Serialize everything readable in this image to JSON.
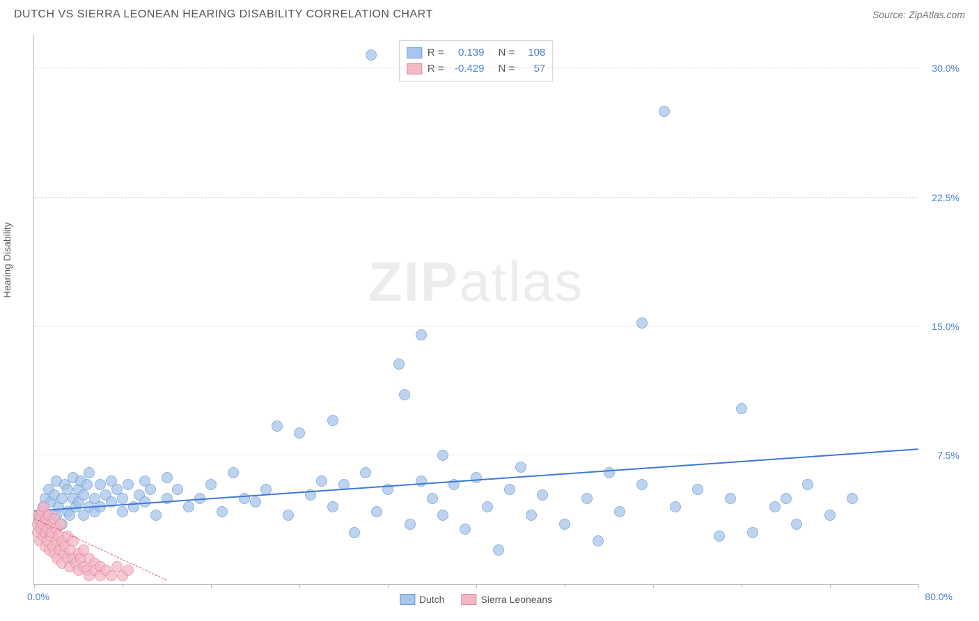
{
  "header": {
    "title": "DUTCH VS SIERRA LEONEAN HEARING DISABILITY CORRELATION CHART",
    "source": "Source: ZipAtlas.com"
  },
  "chart": {
    "type": "scatter",
    "y_axis_title": "Hearing Disability",
    "background_color": "#ffffff",
    "grid_color": "#dddddd",
    "axis_color": "#bbbbbb",
    "tick_label_color": "#4a7dd6",
    "xlim": [
      0,
      80
    ],
    "ylim": [
      0,
      32
    ],
    "x_label_min": "0.0%",
    "x_label_max": "80.0%",
    "y_ticks": [
      {
        "value": 7.5,
        "label": "7.5%"
      },
      {
        "value": 15.0,
        "label": "15.0%"
      },
      {
        "value": 22.5,
        "label": "22.5%"
      },
      {
        "value": 30.0,
        "label": "30.0%"
      }
    ],
    "x_tick_positions": [
      0,
      8,
      16,
      24,
      32,
      40,
      48,
      56,
      64,
      72,
      80
    ],
    "marker_radius": 8,
    "series": [
      {
        "name": "Dutch",
        "fill_color": "#a8c5ec",
        "stroke_color": "#6b9ad0",
        "fill_opacity": 0.75,
        "trend": {
          "x1": 0,
          "y1": 4.2,
          "x2": 80,
          "y2": 7.8,
          "color": "#3d78d6",
          "width": 2,
          "dash": false
        },
        "points": [
          [
            0.5,
            4.0
          ],
          [
            0.5,
            3.5
          ],
          [
            0.8,
            4.5
          ],
          [
            1.0,
            3.2
          ],
          [
            1.0,
            5.0
          ],
          [
            1.2,
            4.0
          ],
          [
            1.3,
            5.5
          ],
          [
            1.5,
            3.8
          ],
          [
            1.5,
            4.8
          ],
          [
            1.8,
            5.2
          ],
          [
            2.0,
            4.0
          ],
          [
            2.0,
            6.0
          ],
          [
            2.2,
            4.5
          ],
          [
            2.5,
            5.0
          ],
          [
            2.5,
            3.5
          ],
          [
            2.8,
            5.8
          ],
          [
            3.0,
            4.2
          ],
          [
            3.0,
            5.5
          ],
          [
            3.2,
            4.0
          ],
          [
            3.5,
            6.2
          ],
          [
            3.5,
            5.0
          ],
          [
            3.8,
            4.5
          ],
          [
            4.0,
            5.5
          ],
          [
            4.0,
            4.8
          ],
          [
            4.2,
            6.0
          ],
          [
            4.5,
            5.2
          ],
          [
            4.5,
            4.0
          ],
          [
            4.8,
            5.8
          ],
          [
            5.0,
            4.5
          ],
          [
            5.0,
            6.5
          ],
          [
            5.5,
            5.0
          ],
          [
            5.5,
            4.2
          ],
          [
            6.0,
            5.8
          ],
          [
            6.0,
            4.5
          ],
          [
            6.5,
            5.2
          ],
          [
            7.0,
            4.8
          ],
          [
            7.0,
            6.0
          ],
          [
            7.5,
            5.5
          ],
          [
            8.0,
            5.0
          ],
          [
            8.0,
            4.2
          ],
          [
            8.5,
            5.8
          ],
          [
            9.0,
            4.5
          ],
          [
            9.5,
            5.2
          ],
          [
            10.0,
            6.0
          ],
          [
            10.0,
            4.8
          ],
          [
            10.5,
            5.5
          ],
          [
            11.0,
            4.0
          ],
          [
            12.0,
            5.0
          ],
          [
            12.0,
            6.2
          ],
          [
            13.0,
            5.5
          ],
          [
            14.0,
            4.5
          ],
          [
            15.0,
            5.0
          ],
          [
            16.0,
            5.8
          ],
          [
            17.0,
            4.2
          ],
          [
            18.0,
            6.5
          ],
          [
            19.0,
            5.0
          ],
          [
            20.0,
            4.8
          ],
          [
            21.0,
            5.5
          ],
          [
            22.0,
            9.2
          ],
          [
            23.0,
            4.0
          ],
          [
            24.0,
            8.8
          ],
          [
            25.0,
            5.2
          ],
          [
            26.0,
            6.0
          ],
          [
            27.0,
            4.5
          ],
          [
            27.0,
            9.5
          ],
          [
            28.0,
            5.8
          ],
          [
            29.0,
            3.0
          ],
          [
            30.0,
            6.5
          ],
          [
            30.5,
            30.8
          ],
          [
            31.0,
            4.2
          ],
          [
            32.0,
            5.5
          ],
          [
            33.0,
            12.8
          ],
          [
            33.5,
            11.0
          ],
          [
            34.0,
            3.5
          ],
          [
            35.0,
            6.0
          ],
          [
            35.0,
            14.5
          ],
          [
            36.0,
            5.0
          ],
          [
            37.0,
            4.0
          ],
          [
            37.0,
            7.5
          ],
          [
            38.0,
            5.8
          ],
          [
            39.0,
            3.2
          ],
          [
            40.0,
            6.2
          ],
          [
            41.0,
            4.5
          ],
          [
            42.0,
            2.0
          ],
          [
            43.0,
            5.5
          ],
          [
            44.0,
            6.8
          ],
          [
            45.0,
            4.0
          ],
          [
            46.0,
            5.2
          ],
          [
            48.0,
            3.5
          ],
          [
            50.0,
            5.0
          ],
          [
            51.0,
            2.5
          ],
          [
            52.0,
            6.5
          ],
          [
            53.0,
            4.2
          ],
          [
            55.0,
            5.8
          ],
          [
            55.0,
            15.2
          ],
          [
            57.0,
            27.5
          ],
          [
            58.0,
            4.5
          ],
          [
            60.0,
            5.5
          ],
          [
            62.0,
            2.8
          ],
          [
            63.0,
            5.0
          ],
          [
            64.0,
            10.2
          ],
          [
            65.0,
            3.0
          ],
          [
            67.0,
            4.5
          ],
          [
            68.0,
            5.0
          ],
          [
            69.0,
            3.5
          ],
          [
            70.0,
            5.8
          ],
          [
            72.0,
            4.0
          ],
          [
            74.0,
            5.0
          ]
        ]
      },
      {
        "name": "Sierra Leoneans",
        "fill_color": "#f4b8c5",
        "stroke_color": "#e088a0",
        "fill_opacity": 0.75,
        "trend": {
          "x1": 0,
          "y1": 3.8,
          "x2": 12,
          "y2": 0.2,
          "color": "#e05080",
          "width": 1.5,
          "dash": true
        },
        "points": [
          [
            0.3,
            3.5
          ],
          [
            0.3,
            3.0
          ],
          [
            0.4,
            4.0
          ],
          [
            0.5,
            2.5
          ],
          [
            0.5,
            3.8
          ],
          [
            0.6,
            3.2
          ],
          [
            0.7,
            4.2
          ],
          [
            0.8,
            2.8
          ],
          [
            0.8,
            3.5
          ],
          [
            0.9,
            4.5
          ],
          [
            1.0,
            3.0
          ],
          [
            1.0,
            2.2
          ],
          [
            1.1,
            3.8
          ],
          [
            1.2,
            2.5
          ],
          [
            1.2,
            3.2
          ],
          [
            1.3,
            4.0
          ],
          [
            1.4,
            2.0
          ],
          [
            1.5,
            3.5
          ],
          [
            1.5,
            2.8
          ],
          [
            1.6,
            3.0
          ],
          [
            1.7,
            2.2
          ],
          [
            1.8,
            3.8
          ],
          [
            1.8,
            1.8
          ],
          [
            2.0,
            2.5
          ],
          [
            2.0,
            3.2
          ],
          [
            2.1,
            1.5
          ],
          [
            2.2,
            2.8
          ],
          [
            2.3,
            2.0
          ],
          [
            2.4,
            3.5
          ],
          [
            2.5,
            1.2
          ],
          [
            2.5,
            2.5
          ],
          [
            2.7,
            1.8
          ],
          [
            2.8,
            2.2
          ],
          [
            3.0,
            1.5
          ],
          [
            3.0,
            2.8
          ],
          [
            3.2,
            1.0
          ],
          [
            3.3,
            2.0
          ],
          [
            3.5,
            1.5
          ],
          [
            3.5,
            2.5
          ],
          [
            3.8,
            1.2
          ],
          [
            4.0,
            1.8
          ],
          [
            4.0,
            0.8
          ],
          [
            4.2,
            1.5
          ],
          [
            4.5,
            1.0
          ],
          [
            4.5,
            2.0
          ],
          [
            4.8,
            0.8
          ],
          [
            5.0,
            1.5
          ],
          [
            5.0,
            0.5
          ],
          [
            5.5,
            1.2
          ],
          [
            5.5,
            0.8
          ],
          [
            6.0,
            1.0
          ],
          [
            6.0,
            0.5
          ],
          [
            6.5,
            0.8
          ],
          [
            7.0,
            0.5
          ],
          [
            7.5,
            1.0
          ],
          [
            8.0,
            0.5
          ],
          [
            8.5,
            0.8
          ]
        ]
      }
    ],
    "stat_legend": {
      "rows": [
        {
          "swatch_fill": "#a8c5ec",
          "swatch_stroke": "#6b9ad0",
          "r_label": "R =",
          "r_value": "0.139",
          "n_label": "N =",
          "n_value": "108"
        },
        {
          "swatch_fill": "#f4b8c5",
          "swatch_stroke": "#e088a0",
          "r_label": "R =",
          "r_value": "-0.429",
          "n_label": "N =",
          "n_value": "57"
        }
      ]
    },
    "bottom_legend": {
      "items": [
        {
          "label": "Dutch",
          "fill": "#a8c5ec",
          "stroke": "#6b9ad0"
        },
        {
          "label": "Sierra Leoneans",
          "fill": "#f4b8c5",
          "stroke": "#e088a0"
        }
      ]
    },
    "watermark": {
      "bold": "ZIP",
      "light": "atlas"
    }
  }
}
